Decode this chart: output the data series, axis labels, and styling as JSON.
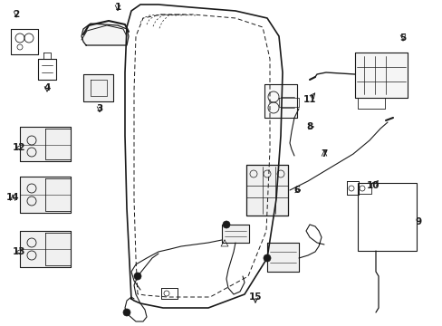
{
  "bg_color": "#ffffff",
  "line_color": "#1a1a1a",
  "fig_width": 4.89,
  "fig_height": 3.6,
  "dpi": 100,
  "xlim": [
    0,
    489
  ],
  "ylim": [
    360,
    0
  ]
}
